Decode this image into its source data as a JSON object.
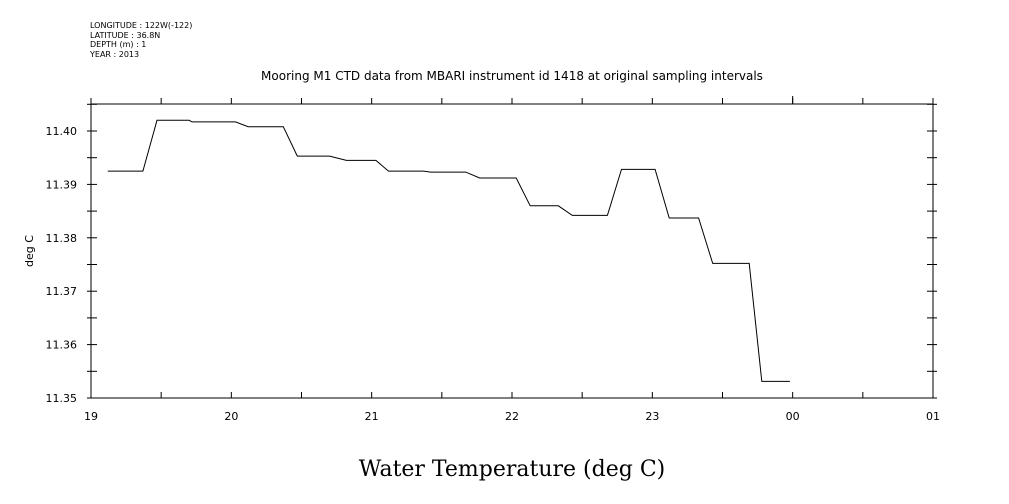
{
  "header": {
    "longitude": "LONGITUDE : 122W(-122)",
    "latitude": "LATITUDE : 36.8N",
    "depth": "DEPTH (m) : 1",
    "year": "YEAR : 2013"
  },
  "chart_data": {
    "type": "line",
    "title": "Mooring M1 CTD data from MBARI instrument id 1418 at original sampling intervals",
    "xlabel": "Water Temperature (deg C)",
    "ylabel": "deg C",
    "xlim": [
      19,
      25
    ],
    "ylim": [
      11.35,
      11.405
    ],
    "x_tick_labels": [
      "19",
      "20",
      "21",
      "22",
      "23",
      "00",
      "01"
    ],
    "y_tick_labels": [
      "11.40",
      "11.39",
      "11.38",
      "11.37",
      "11.36",
      "11.35"
    ],
    "grid": false,
    "color": "#000000",
    "series": [
      {
        "x": [
          19.12,
          19.37,
          19.47,
          19.7,
          19.72,
          20.03,
          20.12,
          20.37,
          20.47,
          20.7,
          20.82,
          21.03,
          21.12,
          21.37,
          21.42,
          21.67,
          21.77,
          22.03,
          22.13,
          22.33,
          22.43,
          22.68,
          22.78,
          23.02,
          23.12,
          23.33,
          23.43,
          23.69,
          23.78,
          23.98
        ],
        "y": [
          11.3925,
          11.3925,
          11.402,
          11.402,
          11.4017,
          11.4017,
          11.4008,
          11.4008,
          11.3953,
          11.3953,
          11.3945,
          11.3945,
          11.3925,
          11.3925,
          11.3923,
          11.3923,
          11.3912,
          11.3912,
          11.386,
          11.386,
          11.3842,
          11.3842,
          11.3928,
          11.3928,
          11.3837,
          11.3837,
          11.3752,
          11.3752,
          11.3531,
          11.3531
        ]
      }
    ]
  }
}
